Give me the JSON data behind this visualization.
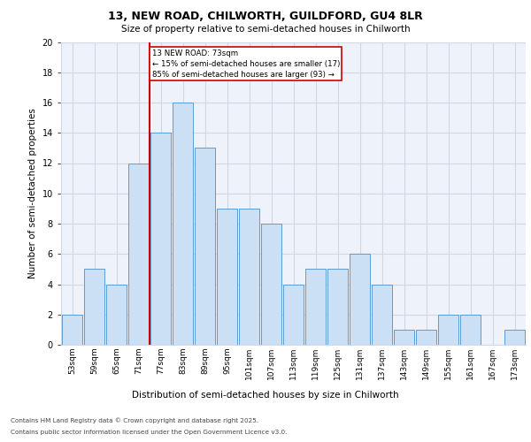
{
  "title_line1": "13, NEW ROAD, CHILWORTH, GUILDFORD, GU4 8LR",
  "title_line2": "Size of property relative to semi-detached houses in Chilworth",
  "xlabel": "Distribution of semi-detached houses by size in Chilworth",
  "ylabel": "Number of semi-detached properties",
  "categories": [
    "53sqm",
    "59sqm",
    "65sqm",
    "71sqm",
    "77sqm",
    "83sqm",
    "89sqm",
    "95sqm",
    "101sqm",
    "107sqm",
    "113sqm",
    "119sqm",
    "125sqm",
    "131sqm",
    "137sqm",
    "143sqm",
    "149sqm",
    "155sqm",
    "161sqm",
    "167sqm",
    "173sqm"
  ],
  "values": [
    2,
    5,
    4,
    12,
    14,
    16,
    13,
    9,
    9,
    8,
    4,
    5,
    5,
    6,
    4,
    1,
    1,
    2,
    2,
    0,
    1
  ],
  "bar_color": "#cce0f5",
  "bar_edge_color": "#5b9bd5",
  "highlight_label": "13 NEW ROAD: 73sqm",
  "pct_smaller": "15% of semi-detached houses are smaller (17)",
  "pct_larger": "85% of semi-detached houses are larger (93)",
  "annotation_box_color": "#ffffff",
  "annotation_box_edge": "#cc0000",
  "vline_color": "#cc0000",
  "ylim": [
    0,
    20
  ],
  "yticks": [
    0,
    2,
    4,
    6,
    8,
    10,
    12,
    14,
    16,
    18,
    20
  ],
  "grid_color": "#d0d8e8",
  "bg_color": "#eef2fb",
  "footnote1": "Contains HM Land Registry data © Crown copyright and database right 2025.",
  "footnote2": "Contains public sector information licensed under the Open Government Licence v3.0."
}
